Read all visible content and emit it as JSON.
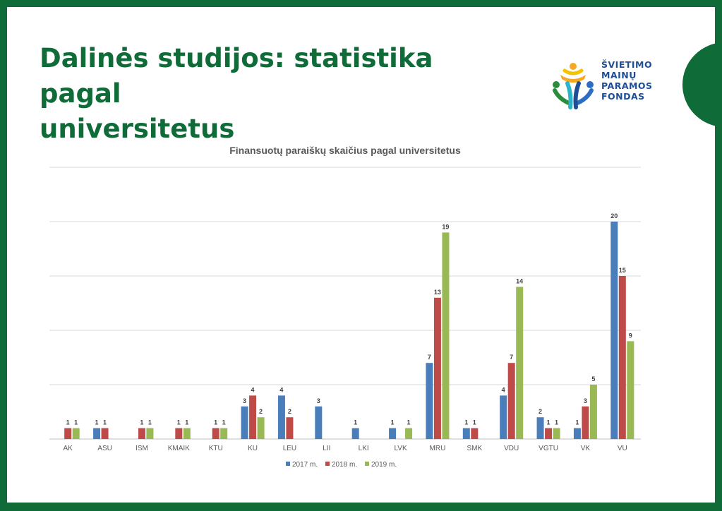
{
  "slide": {
    "title_line1": "Dalinės studijos: statistika pagal",
    "title_line2": "universitetus",
    "brand_color": "#0f6b37"
  },
  "logo": {
    "lines": [
      "ŠVIETIMO",
      "MAINŲ",
      "PARAMOS",
      "FONDAS"
    ],
    "text_color": "#1e4f96"
  },
  "chart_data": {
    "type": "bar",
    "title": "Finansuotų paraiškų skaičius pagal universitetus",
    "xlabel": "",
    "ylabel": "",
    "categories": [
      "AK",
      "ASU",
      "ISM",
      "KMAIK",
      "KTU",
      "KU",
      "LEU",
      "LII",
      "LKI",
      "LVK",
      "MRU",
      "SMK",
      "VDU",
      "VGTU",
      "VK",
      "VU"
    ],
    "series": [
      {
        "name": "2017 m.",
        "color": "#4a7ebb",
        "values": [
          null,
          1,
          null,
          null,
          null,
          3,
          4,
          3,
          1,
          1,
          7,
          1,
          4,
          2,
          1,
          20
        ]
      },
      {
        "name": "2018 m.",
        "color": "#be4b48",
        "values": [
          1,
          1,
          1,
          1,
          1,
          4,
          2,
          null,
          null,
          null,
          13,
          1,
          7,
          1,
          3,
          15
        ]
      },
      {
        "name": "2019 m.",
        "color": "#98b954",
        "values": [
          1,
          null,
          1,
          1,
          1,
          2,
          null,
          null,
          null,
          1,
          19,
          null,
          14,
          1,
          5,
          9
        ]
      }
    ],
    "ylim": [
      0,
      25
    ],
    "grid": true,
    "legend": "bottom",
    "data_labels": true
  }
}
